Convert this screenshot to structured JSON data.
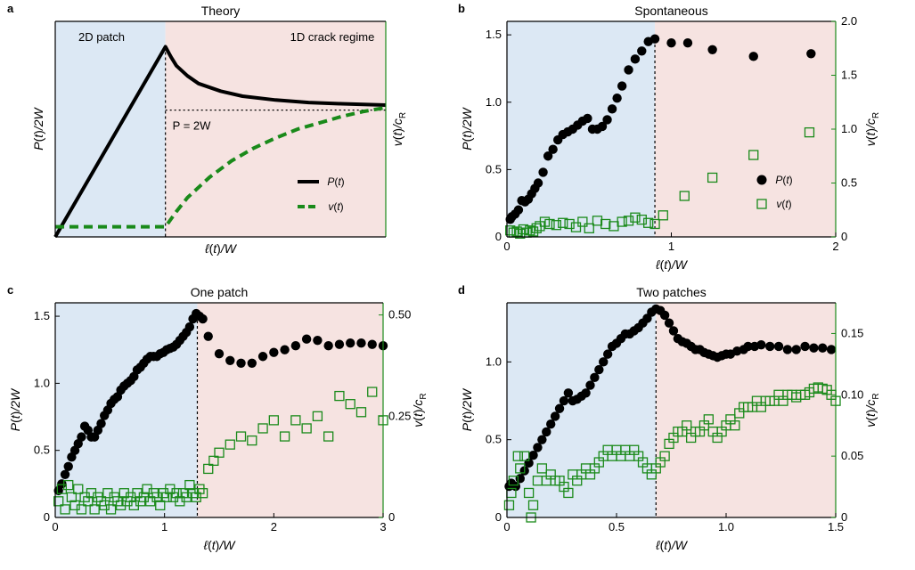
{
  "colors": {
    "black": "#000000",
    "green": "#1a8a1a",
    "blue_region": "#dce8f4",
    "red_region": "#f6e3e1"
  },
  "chart_data": [
    {
      "panel": "a",
      "type": "line",
      "title": "Theory",
      "xlabel": "ℓ(t)/W",
      "ylabel_left": "P(t)/2W",
      "ylabel_right": "v(t)/c_R",
      "regions": [
        "2D patch",
        "1D crack regime"
      ],
      "annotation": "P = 2W",
      "legend": [
        "P(t)",
        "v(t)"
      ],
      "xlim": [
        0,
        3
      ],
      "ylim": [
        0,
        1.7
      ],
      "boundary_x": 1,
      "series": [
        {
          "name": "P(t)",
          "axis": "left",
          "x": [
            0,
            1,
            1.05,
            1.1,
            1.2,
            1.3,
            1.5,
            1.7,
            2.0,
            2.3,
            2.6,
            3.0
          ],
          "y": [
            0,
            1.5,
            1.42,
            1.35,
            1.27,
            1.21,
            1.15,
            1.11,
            1.08,
            1.06,
            1.05,
            1.04
          ]
        },
        {
          "name": "v(t)",
          "axis": "left",
          "x": [
            0,
            1,
            1.1,
            1.2,
            1.4,
            1.6,
            1.8,
            2.0,
            2.2,
            2.4,
            2.6,
            2.8,
            3.0
          ],
          "y": [
            0.08,
            0.08,
            0.2,
            0.31,
            0.47,
            0.6,
            0.7,
            0.78,
            0.85,
            0.9,
            0.95,
            0.99,
            1.02
          ]
        }
      ]
    },
    {
      "panel": "b",
      "type": "scatter",
      "title": "Spontaneous",
      "xlabel": "ℓ(t)/W",
      "ylabel_left": "P(t)/2W",
      "ylabel_right": "v(t)/c_R",
      "legend": [
        "P(t)",
        "v(t)"
      ],
      "xlim": [
        0,
        2
      ],
      "ylim": [
        0,
        1.6
      ],
      "y2lim": [
        0,
        2.0
      ],
      "boundary_x": 0.9,
      "xticks": [
        "0",
        "1",
        "2"
      ],
      "yticks": [
        "0",
        "0.5",
        "1.0",
        "1.5"
      ],
      "y2ticks": [
        "0",
        "0.5",
        "1.0",
        "1.5",
        "2.0"
      ],
      "series": [
        {
          "name": "P(t)",
          "axis": "left",
          "marker": "filled-circle",
          "x": [
            0.02,
            0.03,
            0.05,
            0.07,
            0.09,
            0.11,
            0.13,
            0.15,
            0.17,
            0.19,
            0.22,
            0.25,
            0.28,
            0.31,
            0.34,
            0.37,
            0.4,
            0.43,
            0.46,
            0.49,
            0.52,
            0.55,
            0.58,
            0.61,
            0.64,
            0.67,
            0.7,
            0.74,
            0.78,
            0.82,
            0.86,
            0.9,
            1.0,
            1.1,
            1.25,
            1.5,
            1.85
          ],
          "y": [
            0.13,
            0.15,
            0.17,
            0.2,
            0.27,
            0.26,
            0.28,
            0.32,
            0.36,
            0.4,
            0.48,
            0.6,
            0.65,
            0.72,
            0.76,
            0.78,
            0.8,
            0.83,
            0.86,
            0.88,
            0.8,
            0.8,
            0.82,
            0.87,
            0.95,
            1.03,
            1.12,
            1.24,
            1.32,
            1.38,
            1.45,
            1.47,
            1.44,
            1.44,
            1.39,
            1.34,
            1.36
          ]
        },
        {
          "name": "v(t)",
          "axis": "right",
          "marker": "open-square",
          "x": [
            0.02,
            0.04,
            0.06,
            0.08,
            0.1,
            0.12,
            0.14,
            0.16,
            0.18,
            0.2,
            0.23,
            0.26,
            0.3,
            0.34,
            0.38,
            0.42,
            0.46,
            0.5,
            0.55,
            0.6,
            0.65,
            0.7,
            0.74,
            0.78,
            0.82,
            0.86,
            0.9,
            0.95,
            1.08,
            1.25,
            1.5,
            1.84
          ],
          "y": [
            0.06,
            0.04,
            0.05,
            0.03,
            0.07,
            0.04,
            0.06,
            0.05,
            0.08,
            0.1,
            0.14,
            0.12,
            0.11,
            0.13,
            0.12,
            0.09,
            0.14,
            0.08,
            0.15,
            0.12,
            0.1,
            0.14,
            0.15,
            0.18,
            0.16,
            0.13,
            0.12,
            0.2,
            0.38,
            0.55,
            0.76,
            0.97
          ]
        }
      ]
    },
    {
      "panel": "c",
      "type": "scatter",
      "title": "One patch",
      "xlabel": "ℓ(t)/W",
      "ylabel_left": "P(t)/2W",
      "ylabel_right": "v(t)/c_R",
      "xlim": [
        0,
        3
      ],
      "ylim": [
        0,
        1.6
      ],
      "y2lim": [
        0,
        0.53
      ],
      "boundary_x": 1.3,
      "xticks": [
        "0",
        "1",
        "2",
        "3"
      ],
      "yticks": [
        "0",
        "0.5",
        "1.0",
        "1.5"
      ],
      "y2ticks": [
        "0",
        "0.25",
        "0.50"
      ],
      "series": [
        {
          "name": "P(t)",
          "axis": "left",
          "marker": "filled-circle",
          "x": [
            0.03,
            0.06,
            0.09,
            0.12,
            0.15,
            0.18,
            0.21,
            0.24,
            0.27,
            0.3,
            0.33,
            0.36,
            0.39,
            0.42,
            0.45,
            0.48,
            0.51,
            0.54,
            0.57,
            0.6,
            0.63,
            0.66,
            0.69,
            0.72,
            0.75,
            0.78,
            0.81,
            0.84,
            0.87,
            0.9,
            0.93,
            0.96,
            0.99,
            1.02,
            1.05,
            1.08,
            1.11,
            1.14,
            1.17,
            1.2,
            1.23,
            1.26,
            1.29,
            1.32,
            1.35,
            1.4,
            1.5,
            1.6,
            1.7,
            1.8,
            1.9,
            2.0,
            2.1,
            2.2,
            2.3,
            2.4,
            2.5,
            2.6,
            2.7,
            2.8,
            2.9,
            3.0
          ],
          "y": [
            0.2,
            0.25,
            0.32,
            0.38,
            0.45,
            0.5,
            0.55,
            0.6,
            0.68,
            0.65,
            0.6,
            0.6,
            0.65,
            0.7,
            0.76,
            0.8,
            0.85,
            0.88,
            0.9,
            0.95,
            0.98,
            1.0,
            1.02,
            1.05,
            1.1,
            1.12,
            1.15,
            1.18,
            1.2,
            1.2,
            1.2,
            1.22,
            1.23,
            1.25,
            1.26,
            1.27,
            1.29,
            1.32,
            1.35,
            1.38,
            1.42,
            1.48,
            1.52,
            1.5,
            1.48,
            1.35,
            1.22,
            1.17,
            1.15,
            1.15,
            1.2,
            1.23,
            1.25,
            1.28,
            1.33,
            1.32,
            1.28,
            1.29,
            1.3,
            1.3,
            1.29,
            1.28
          ]
        },
        {
          "name": "v(t)",
          "axis": "right",
          "marker": "open-square",
          "x": [
            0.03,
            0.06,
            0.09,
            0.12,
            0.15,
            0.18,
            0.21,
            0.24,
            0.27,
            0.3,
            0.33,
            0.36,
            0.39,
            0.42,
            0.45,
            0.48,
            0.51,
            0.54,
            0.57,
            0.6,
            0.63,
            0.66,
            0.69,
            0.72,
            0.75,
            0.78,
            0.81,
            0.84,
            0.87,
            0.9,
            0.93,
            0.96,
            0.99,
            1.02,
            1.05,
            1.08,
            1.11,
            1.14,
            1.17,
            1.2,
            1.23,
            1.26,
            1.29,
            1.32,
            1.35,
            1.4,
            1.45,
            1.5,
            1.6,
            1.7,
            1.8,
            1.9,
            2.0,
            2.1,
            2.2,
            2.3,
            2.4,
            2.5,
            2.6,
            2.7,
            2.8,
            2.9,
            3.0
          ],
          "y": [
            0.04,
            0.07,
            0.02,
            0.08,
            0.05,
            0.03,
            0.07,
            0.02,
            0.05,
            0.04,
            0.06,
            0.02,
            0.05,
            0.04,
            0.03,
            0.06,
            0.02,
            0.05,
            0.04,
            0.03,
            0.06,
            0.04,
            0.05,
            0.03,
            0.06,
            0.04,
            0.05,
            0.07,
            0.04,
            0.06,
            0.05,
            0.03,
            0.06,
            0.05,
            0.07,
            0.05,
            0.06,
            0.04,
            0.06,
            0.05,
            0.08,
            0.06,
            0.05,
            0.07,
            0.06,
            0.12,
            0.14,
            0.16,
            0.18,
            0.2,
            0.19,
            0.22,
            0.24,
            0.2,
            0.24,
            0.22,
            0.25,
            0.2,
            0.3,
            0.28,
            0.26,
            0.31,
            0.24
          ]
        }
      ]
    },
    {
      "panel": "d",
      "type": "scatter",
      "title": "Two patches",
      "xlabel": "ℓ(t)/W",
      "ylabel_left": "P(t)/2W",
      "ylabel_right": "v(t)/c_R",
      "xlim": [
        0,
        1.5
      ],
      "ylim": [
        0,
        1.38
      ],
      "y2lim": [
        0,
        0.175
      ],
      "boundary_x": 0.68,
      "xticks": [
        "0",
        "0.5",
        "1.0",
        "1.5"
      ],
      "yticks": [
        "0",
        "0.5",
        "1.0"
      ],
      "y2ticks": [
        "0",
        "0.05",
        "0.10",
        "0.15"
      ],
      "series": [
        {
          "name": "P(t)",
          "axis": "left",
          "marker": "filled-circle",
          "x": [
            0.01,
            0.02,
            0.04,
            0.06,
            0.08,
            0.1,
            0.12,
            0.14,
            0.16,
            0.18,
            0.2,
            0.22,
            0.24,
            0.26,
            0.28,
            0.3,
            0.32,
            0.34,
            0.36,
            0.38,
            0.4,
            0.42,
            0.44,
            0.46,
            0.48,
            0.5,
            0.52,
            0.54,
            0.56,
            0.58,
            0.6,
            0.62,
            0.64,
            0.66,
            0.68,
            0.7,
            0.72,
            0.74,
            0.76,
            0.78,
            0.8,
            0.82,
            0.84,
            0.86,
            0.88,
            0.9,
            0.92,
            0.94,
            0.96,
            0.98,
            1.0,
            1.02,
            1.05,
            1.08,
            1.1,
            1.13,
            1.16,
            1.2,
            1.24,
            1.28,
            1.32,
            1.36,
            1.4,
            1.44,
            1.48
          ],
          "y": [
            0.2,
            0.22,
            0.2,
            0.25,
            0.3,
            0.35,
            0.4,
            0.45,
            0.5,
            0.55,
            0.6,
            0.65,
            0.7,
            0.75,
            0.8,
            0.75,
            0.76,
            0.78,
            0.8,
            0.85,
            0.9,
            0.95,
            1.0,
            1.05,
            1.1,
            1.12,
            1.15,
            1.18,
            1.18,
            1.2,
            1.22,
            1.25,
            1.28,
            1.32,
            1.34,
            1.33,
            1.3,
            1.25,
            1.2,
            1.15,
            1.13,
            1.12,
            1.1,
            1.08,
            1.08,
            1.06,
            1.05,
            1.04,
            1.03,
            1.04,
            1.05,
            1.05,
            1.07,
            1.08,
            1.1,
            1.1,
            1.11,
            1.1,
            1.1,
            1.08,
            1.08,
            1.1,
            1.09,
            1.09,
            1.08
          ]
        },
        {
          "name": "v(t)",
          "axis": "right",
          "marker": "open-square",
          "x": [
            0.01,
            0.02,
            0.03,
            0.05,
            0.06,
            0.08,
            0.1,
            0.11,
            0.12,
            0.14,
            0.16,
            0.18,
            0.2,
            0.22,
            0.24,
            0.26,
            0.28,
            0.3,
            0.32,
            0.34,
            0.36,
            0.38,
            0.4,
            0.42,
            0.44,
            0.46,
            0.48,
            0.5,
            0.52,
            0.54,
            0.56,
            0.58,
            0.6,
            0.62,
            0.64,
            0.66,
            0.68,
            0.7,
            0.72,
            0.74,
            0.76,
            0.78,
            0.8,
            0.82,
            0.84,
            0.86,
            0.88,
            0.9,
            0.92,
            0.94,
            0.96,
            0.98,
            1.0,
            1.02,
            1.04,
            1.06,
            1.08,
            1.1,
            1.12,
            1.14,
            1.16,
            1.18,
            1.2,
            1.22,
            1.24,
            1.26,
            1.28,
            1.3,
            1.32,
            1.34,
            1.36,
            1.38,
            1.4,
            1.42,
            1.44,
            1.46,
            1.48,
            1.5
          ],
          "y": [
            0.01,
            0.02,
            0.03,
            0.05,
            0.04,
            0.05,
            0.02,
            0.0,
            0.01,
            0.03,
            0.04,
            0.03,
            0.035,
            0.03,
            0.03,
            0.025,
            0.02,
            0.035,
            0.03,
            0.035,
            0.04,
            0.035,
            0.04,
            0.045,
            0.05,
            0.055,
            0.05,
            0.055,
            0.05,
            0.055,
            0.05,
            0.055,
            0.05,
            0.045,
            0.04,
            0.035,
            0.04,
            0.045,
            0.05,
            0.06,
            0.065,
            0.07,
            0.07,
            0.075,
            0.065,
            0.07,
            0.07,
            0.075,
            0.08,
            0.07,
            0.065,
            0.07,
            0.075,
            0.08,
            0.075,
            0.085,
            0.09,
            0.09,
            0.09,
            0.095,
            0.09,
            0.095,
            0.095,
            0.095,
            0.1,
            0.095,
            0.1,
            0.1,
            0.098,
            0.1,
            0.1,
            0.102,
            0.105,
            0.106,
            0.105,
            0.104,
            0.1,
            0.095
          ]
        }
      ]
    }
  ]
}
